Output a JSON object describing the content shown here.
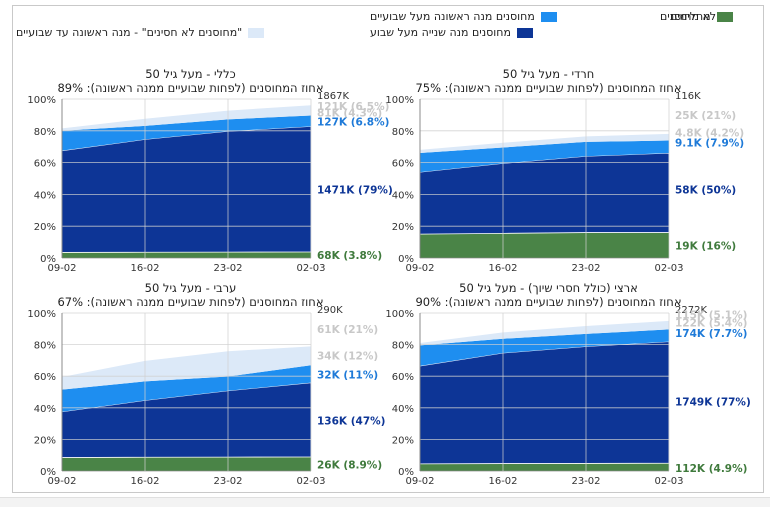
{
  "legend": [
    {
      "label": "לא מחוסנים",
      "color": "#ffffff"
    },
    {
      "label": "\"מחוסנים לא חסינים\" - מנה ראשונה עד שבועיים",
      "color": "#dce9f8"
    },
    {
      "label": "מחוסנים מנה ראשונה מעל שבועיים",
      "color": "#1e8ef0"
    },
    {
      "label": "מחוסנים מנה שנייה מעל שבוע",
      "color": "#0d3596"
    },
    {
      "label": "מחלימים",
      "color": "#4a8447"
    }
  ],
  "colors": {
    "recovered": "#4a8447",
    "dose2": "#0d3596",
    "dose1": "#1e8ef0",
    "notimmune": "#dce9f8",
    "grid": "#d0d0d0",
    "label_notimmune": "#c8c8c8",
    "label_dose1": "#1e7ad8",
    "label_dose2": "#0d3596",
    "label_recovered": "#3f7a3c"
  },
  "chart_data": [
    {
      "type": "area",
      "title": "כללי - מעל גיל 50",
      "subtitle": "אחוז המחוסנים (לפחות שבועיים ממנה ראשונה): 89%",
      "total_label": "1867K",
      "x_ticks": [
        "09-02",
        "16-02",
        "23-02",
        "02-03"
      ],
      "y_ticks": [
        "0%",
        "20%",
        "40%",
        "60%",
        "80%",
        "100%"
      ],
      "ylim": [
        0,
        100
      ],
      "series": [
        {
          "key": "recovered",
          "values": [
            3.5,
            3.6,
            3.7,
            3.8
          ]
        },
        {
          "key": "dose2",
          "values": [
            64,
            71,
            76,
            79
          ]
        },
        {
          "key": "dose1",
          "values": [
            12.5,
            8.5,
            7.5,
            6.8
          ]
        },
        {
          "key": "notimmune",
          "values": [
            1.5,
            4.5,
            5.5,
            6.5
          ]
        }
      ],
      "right_labels": [
        {
          "text": "121K (6.5%)",
          "key": "notimmune",
          "y": 95.5
        },
        {
          "text": "81K (4.3%)",
          "key": "notimmune",
          "y": 91.5
        },
        {
          "text": "127K (6.8%)",
          "key": "dose1",
          "y": 86
        },
        {
          "text": "1471K (79%)",
          "key": "dose2",
          "y": 43
        },
        {
          "text": "68K (3.8%)",
          "key": "recovered",
          "y": 2
        }
      ]
    },
    {
      "type": "area",
      "title": "חרדי - מעל גיל 50",
      "subtitle": "אחוז המחוסנים (לפחות שבועיים ממנה ראשונה): 75%",
      "total_label": "116K",
      "x_ticks": [
        "09-02",
        "16-02",
        "23-02",
        "02-03"
      ],
      "y_ticks": [
        "0%",
        "20%",
        "40%",
        "60%",
        "80%",
        "100%"
      ],
      "ylim": [
        0,
        100
      ],
      "series": [
        {
          "key": "recovered",
          "values": [
            15,
            15.5,
            16,
            16
          ]
        },
        {
          "key": "dose2",
          "values": [
            39,
            44,
            48,
            50
          ]
        },
        {
          "key": "dose1",
          "values": [
            12,
            10,
            9,
            7.9
          ]
        },
        {
          "key": "notimmune",
          "values": [
            2,
            3,
            3.5,
            4.2
          ]
        }
      ],
      "right_labels": [
        {
          "text": "25K (21%)",
          "key": "notimmune",
          "y": 90
        },
        {
          "text": "4.8K (4.2%)",
          "key": "notimmune",
          "y": 79
        },
        {
          "text": "9.1K (7.9%)",
          "key": "dose1",
          "y": 72.5
        },
        {
          "text": "58K (50%)",
          "key": "dose2",
          "y": 43
        },
        {
          "text": "19K (16%)",
          "key": "recovered",
          "y": 8
        }
      ]
    },
    {
      "type": "area",
      "title": "ערבי - מעל גיל 50",
      "subtitle": "אחוז המחוסנים (לפחות שבועיים ממנה ראשונה): 67%",
      "total_label": "290K",
      "x_ticks": [
        "09-02",
        "16-02",
        "23-02",
        "02-03"
      ],
      "y_ticks": [
        "0%",
        "20%",
        "40%",
        "60%",
        "80%",
        "100%"
      ],
      "ylim": [
        0,
        100
      ],
      "series": [
        {
          "key": "recovered",
          "values": [
            8.5,
            8.7,
            8.8,
            8.9
          ]
        },
        {
          "key": "dose2",
          "values": [
            29,
            36,
            42,
            47
          ]
        },
        {
          "key": "dose1",
          "values": [
            14,
            12,
            9,
            11
          ]
        },
        {
          "key": "notimmune",
          "values": [
            8,
            13,
            16,
            12
          ]
        }
      ],
      "right_labels": [
        {
          "text": "61K (21%)",
          "key": "notimmune",
          "y": 90
        },
        {
          "text": "34K (12%)",
          "key": "notimmune",
          "y": 73
        },
        {
          "text": "32K (11%)",
          "key": "dose1",
          "y": 61
        },
        {
          "text": "136K (47%)",
          "key": "dose2",
          "y": 32
        },
        {
          "text": "26K (8.9%)",
          "key": "recovered",
          "y": 4
        }
      ]
    },
    {
      "type": "area",
      "title": "ארצי (כולל חסרי שיוך) - מעל גיל 50",
      "subtitle": "אחוז המחוסנים (לפחות שבועיים ממנה ראשונה): 90%",
      "total_label": "2272K",
      "x_ticks": [
        "09-02",
        "16-02",
        "23-02",
        "02-03"
      ],
      "y_ticks": [
        "0%",
        "20%",
        "40%",
        "60%",
        "80%",
        "100%"
      ],
      "ylim": [
        0,
        100
      ],
      "series": [
        {
          "key": "recovered",
          "values": [
            4.5,
            4.7,
            4.8,
            4.9
          ]
        },
        {
          "key": "dose2",
          "values": [
            62,
            70,
            74,
            77
          ]
        },
        {
          "key": "dose1",
          "values": [
            13,
            9,
            8,
            7.7
          ]
        },
        {
          "key": "notimmune",
          "values": [
            1.5,
            4,
            5,
            5.4
          ]
        }
      ],
      "right_labels": [
        {
          "text": "115K (5.1%)",
          "key": "notimmune",
          "y": 99
        },
        {
          "text": "122K (5.4%)",
          "key": "notimmune",
          "y": 94
        },
        {
          "text": "174K (7.7%)",
          "key": "dose1",
          "y": 87.5
        },
        {
          "text": "1749K (77%)",
          "key": "dose2",
          "y": 44
        },
        {
          "text": "112K (4.9%)",
          "key": "recovered",
          "y": 2
        }
      ]
    }
  ]
}
